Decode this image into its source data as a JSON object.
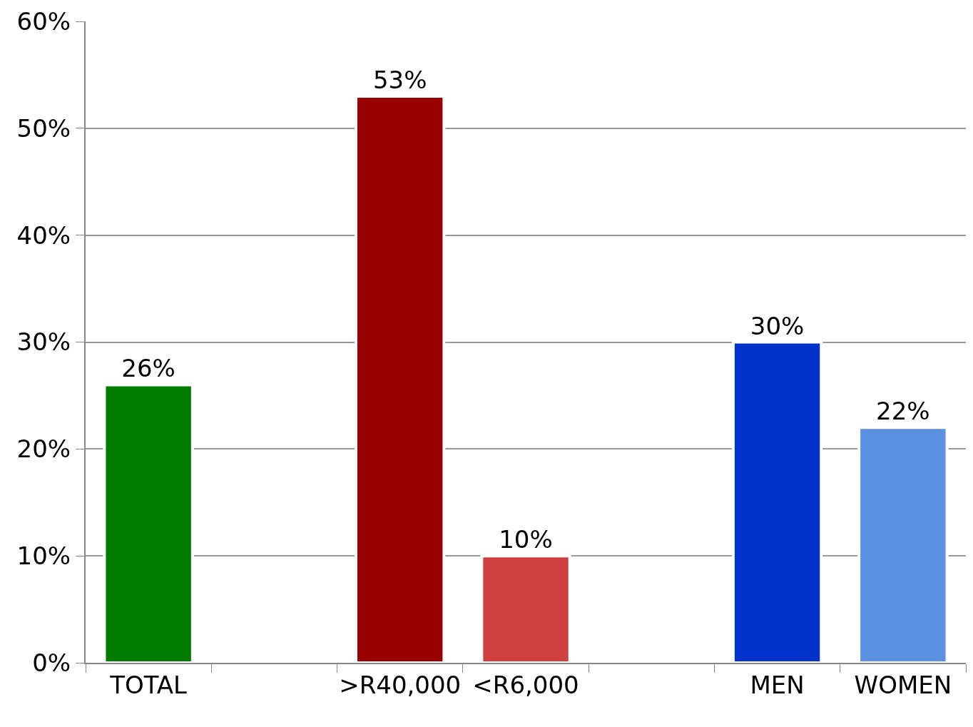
{
  "chart_data": {
    "type": "bar",
    "categories": [
      "TOTAL",
      null,
      ">R40,000",
      "<R6,000",
      null,
      "MEN",
      "WOMEN"
    ],
    "values": [
      26,
      null,
      53,
      10,
      null,
      30,
      22
    ],
    "colors": [
      "#007c00",
      null,
      "#990000",
      "#d04040",
      null,
      "#0033cc",
      "#5b8fe0"
    ],
    "value_labels": [
      "26%",
      null,
      "53%",
      "10%",
      null,
      "30%",
      "22%"
    ],
    "ylim": [
      0,
      60
    ],
    "yticks": [
      {
        "value": 0,
        "label": "0%"
      },
      {
        "value": 10,
        "label": "10%"
      },
      {
        "value": 20,
        "label": "20%"
      },
      {
        "value": 30,
        "label": "30%"
      },
      {
        "value": 40,
        "label": "40%"
      },
      {
        "value": 50,
        "label": "50%"
      },
      {
        "value": 60,
        "label": "60%"
      }
    ],
    "grid": "y",
    "legend": false
  }
}
